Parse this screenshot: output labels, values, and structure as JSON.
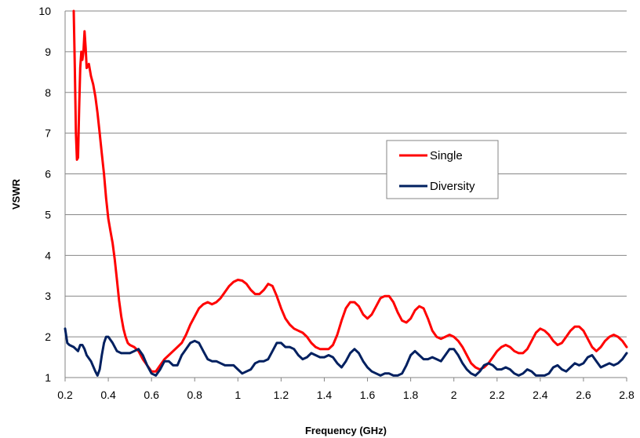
{
  "chart_data": {
    "type": "line",
    "xlabel": "Frequency (GHz)",
    "ylabel": "VSWR",
    "xlim": [
      0.2,
      2.8
    ],
    "ylim": [
      1,
      10
    ],
    "x_ticks": [
      "0.2",
      "0.4",
      "0.6",
      "0.8",
      "1",
      "1.2",
      "1.4",
      "1.6",
      "1.8",
      "2",
      "2.2",
      "2.4",
      "2.6",
      "2.8"
    ],
    "y_ticks": [
      "1",
      "2",
      "3",
      "4",
      "5",
      "6",
      "7",
      "8",
      "9",
      "10"
    ],
    "grid": "horizontal",
    "legend_position": "center-right",
    "series": [
      {
        "name": "Single",
        "color": "#ff0000",
        "points": [
          [
            0.24,
            10.0
          ],
          [
            0.245,
            8.6
          ],
          [
            0.25,
            7.0
          ],
          [
            0.255,
            6.35
          ],
          [
            0.26,
            6.4
          ],
          [
            0.265,
            7.6
          ],
          [
            0.27,
            8.6
          ],
          [
            0.275,
            9.0
          ],
          [
            0.28,
            8.8
          ],
          [
            0.285,
            9.0
          ],
          [
            0.29,
            9.5
          ],
          [
            0.295,
            9.1
          ],
          [
            0.3,
            8.6
          ],
          [
            0.31,
            8.7
          ],
          [
            0.32,
            8.4
          ],
          [
            0.33,
            8.2
          ],
          [
            0.34,
            7.9
          ],
          [
            0.35,
            7.5
          ],
          [
            0.36,
            7.0
          ],
          [
            0.37,
            6.5
          ],
          [
            0.38,
            6.0
          ],
          [
            0.39,
            5.4
          ],
          [
            0.4,
            4.9
          ],
          [
            0.41,
            4.6
          ],
          [
            0.42,
            4.3
          ],
          [
            0.43,
            3.9
          ],
          [
            0.44,
            3.4
          ],
          [
            0.45,
            2.9
          ],
          [
            0.46,
            2.5
          ],
          [
            0.47,
            2.2
          ],
          [
            0.48,
            2.0
          ],
          [
            0.49,
            1.85
          ],
          [
            0.5,
            1.8
          ],
          [
            0.52,
            1.75
          ],
          [
            0.54,
            1.65
          ],
          [
            0.56,
            1.45
          ],
          [
            0.58,
            1.3
          ],
          [
            0.6,
            1.15
          ],
          [
            0.62,
            1.15
          ],
          [
            0.64,
            1.3
          ],
          [
            0.66,
            1.45
          ],
          [
            0.68,
            1.55
          ],
          [
            0.7,
            1.65
          ],
          [
            0.72,
            1.75
          ],
          [
            0.74,
            1.85
          ],
          [
            0.76,
            2.05
          ],
          [
            0.78,
            2.3
          ],
          [
            0.8,
            2.5
          ],
          [
            0.82,
            2.7
          ],
          [
            0.84,
            2.8
          ],
          [
            0.86,
            2.85
          ],
          [
            0.88,
            2.8
          ],
          [
            0.9,
            2.85
          ],
          [
            0.92,
            2.95
          ],
          [
            0.94,
            3.1
          ],
          [
            0.96,
            3.25
          ],
          [
            0.98,
            3.35
          ],
          [
            1.0,
            3.4
          ],
          [
            1.02,
            3.38
          ],
          [
            1.04,
            3.3
          ],
          [
            1.06,
            3.15
          ],
          [
            1.08,
            3.05
          ],
          [
            1.1,
            3.05
          ],
          [
            1.12,
            3.15
          ],
          [
            1.14,
            3.3
          ],
          [
            1.16,
            3.25
          ],
          [
            1.18,
            3.0
          ],
          [
            1.2,
            2.7
          ],
          [
            1.22,
            2.45
          ],
          [
            1.24,
            2.3
          ],
          [
            1.26,
            2.2
          ],
          [
            1.28,
            2.15
          ],
          [
            1.3,
            2.1
          ],
          [
            1.32,
            2.0
          ],
          [
            1.34,
            1.85
          ],
          [
            1.36,
            1.75
          ],
          [
            1.38,
            1.7
          ],
          [
            1.4,
            1.7
          ],
          [
            1.42,
            1.7
          ],
          [
            1.44,
            1.8
          ],
          [
            1.46,
            2.05
          ],
          [
            1.48,
            2.4
          ],
          [
            1.5,
            2.7
          ],
          [
            1.52,
            2.85
          ],
          [
            1.54,
            2.85
          ],
          [
            1.56,
            2.75
          ],
          [
            1.58,
            2.55
          ],
          [
            1.6,
            2.45
          ],
          [
            1.62,
            2.55
          ],
          [
            1.64,
            2.75
          ],
          [
            1.66,
            2.95
          ],
          [
            1.68,
            3.0
          ],
          [
            1.7,
            3.0
          ],
          [
            1.72,
            2.85
          ],
          [
            1.74,
            2.6
          ],
          [
            1.76,
            2.4
          ],
          [
            1.78,
            2.35
          ],
          [
            1.8,
            2.45
          ],
          [
            1.82,
            2.65
          ],
          [
            1.84,
            2.75
          ],
          [
            1.86,
            2.7
          ],
          [
            1.88,
            2.45
          ],
          [
            1.9,
            2.15
          ],
          [
            1.92,
            2.0
          ],
          [
            1.94,
            1.95
          ],
          [
            1.96,
            2.0
          ],
          [
            1.98,
            2.05
          ],
          [
            2.0,
            2.0
          ],
          [
            2.02,
            1.9
          ],
          [
            2.04,
            1.75
          ],
          [
            2.06,
            1.55
          ],
          [
            2.08,
            1.35
          ],
          [
            2.1,
            1.25
          ],
          [
            2.12,
            1.2
          ],
          [
            2.14,
            1.25
          ],
          [
            2.16,
            1.35
          ],
          [
            2.18,
            1.5
          ],
          [
            2.2,
            1.65
          ],
          [
            2.22,
            1.75
          ],
          [
            2.24,
            1.8
          ],
          [
            2.26,
            1.75
          ],
          [
            2.28,
            1.65
          ],
          [
            2.3,
            1.6
          ],
          [
            2.32,
            1.6
          ],
          [
            2.34,
            1.7
          ],
          [
            2.36,
            1.9
          ],
          [
            2.38,
            2.1
          ],
          [
            2.4,
            2.2
          ],
          [
            2.42,
            2.15
          ],
          [
            2.44,
            2.05
          ],
          [
            2.46,
            1.9
          ],
          [
            2.48,
            1.8
          ],
          [
            2.5,
            1.85
          ],
          [
            2.52,
            2.0
          ],
          [
            2.54,
            2.15
          ],
          [
            2.56,
            2.25
          ],
          [
            2.58,
            2.25
          ],
          [
            2.6,
            2.15
          ],
          [
            2.62,
            1.95
          ],
          [
            2.64,
            1.75
          ],
          [
            2.66,
            1.65
          ],
          [
            2.68,
            1.75
          ],
          [
            2.7,
            1.9
          ],
          [
            2.72,
            2.0
          ],
          [
            2.74,
            2.05
          ],
          [
            2.76,
            2.0
          ],
          [
            2.78,
            1.9
          ],
          [
            2.8,
            1.75
          ]
        ]
      },
      {
        "name": "Diversity",
        "color": "#002060",
        "points": [
          [
            0.2,
            2.2
          ],
          [
            0.21,
            1.85
          ],
          [
            0.22,
            1.8
          ],
          [
            0.24,
            1.75
          ],
          [
            0.26,
            1.65
          ],
          [
            0.27,
            1.8
          ],
          [
            0.28,
            1.8
          ],
          [
            0.29,
            1.7
          ],
          [
            0.3,
            1.55
          ],
          [
            0.32,
            1.4
          ],
          [
            0.34,
            1.15
          ],
          [
            0.35,
            1.05
          ],
          [
            0.36,
            1.2
          ],
          [
            0.37,
            1.55
          ],
          [
            0.38,
            1.85
          ],
          [
            0.39,
            2.0
          ],
          [
            0.4,
            2.0
          ],
          [
            0.42,
            1.85
          ],
          [
            0.44,
            1.65
          ],
          [
            0.46,
            1.6
          ],
          [
            0.48,
            1.6
          ],
          [
            0.5,
            1.6
          ],
          [
            0.52,
            1.65
          ],
          [
            0.54,
            1.7
          ],
          [
            0.56,
            1.55
          ],
          [
            0.58,
            1.3
          ],
          [
            0.6,
            1.1
          ],
          [
            0.62,
            1.05
          ],
          [
            0.64,
            1.2
          ],
          [
            0.66,
            1.4
          ],
          [
            0.68,
            1.4
          ],
          [
            0.7,
            1.3
          ],
          [
            0.72,
            1.3
          ],
          [
            0.74,
            1.55
          ],
          [
            0.76,
            1.7
          ],
          [
            0.78,
            1.85
          ],
          [
            0.8,
            1.9
          ],
          [
            0.82,
            1.85
          ],
          [
            0.84,
            1.65
          ],
          [
            0.86,
            1.45
          ],
          [
            0.88,
            1.4
          ],
          [
            0.9,
            1.4
          ],
          [
            0.92,
            1.35
          ],
          [
            0.94,
            1.3
          ],
          [
            0.96,
            1.3
          ],
          [
            0.98,
            1.3
          ],
          [
            1.0,
            1.2
          ],
          [
            1.02,
            1.1
          ],
          [
            1.04,
            1.15
          ],
          [
            1.06,
            1.2
          ],
          [
            1.08,
            1.35
          ],
          [
            1.1,
            1.4
          ],
          [
            1.12,
            1.4
          ],
          [
            1.14,
            1.45
          ],
          [
            1.16,
            1.65
          ],
          [
            1.18,
            1.85
          ],
          [
            1.2,
            1.85
          ],
          [
            1.22,
            1.75
          ],
          [
            1.24,
            1.75
          ],
          [
            1.26,
            1.7
          ],
          [
            1.28,
            1.55
          ],
          [
            1.3,
            1.45
          ],
          [
            1.32,
            1.5
          ],
          [
            1.34,
            1.6
          ],
          [
            1.36,
            1.55
          ],
          [
            1.38,
            1.5
          ],
          [
            1.4,
            1.5
          ],
          [
            1.42,
            1.55
          ],
          [
            1.44,
            1.5
          ],
          [
            1.46,
            1.35
          ],
          [
            1.48,
            1.25
          ],
          [
            1.5,
            1.4
          ],
          [
            1.52,
            1.6
          ],
          [
            1.54,
            1.7
          ],
          [
            1.56,
            1.6
          ],
          [
            1.58,
            1.4
          ],
          [
            1.6,
            1.25
          ],
          [
            1.62,
            1.15
          ],
          [
            1.64,
            1.1
          ],
          [
            1.66,
            1.05
          ],
          [
            1.68,
            1.1
          ],
          [
            1.7,
            1.1
          ],
          [
            1.72,
            1.05
          ],
          [
            1.74,
            1.05
          ],
          [
            1.76,
            1.1
          ],
          [
            1.78,
            1.3
          ],
          [
            1.8,
            1.55
          ],
          [
            1.82,
            1.65
          ],
          [
            1.84,
            1.55
          ],
          [
            1.86,
            1.45
          ],
          [
            1.88,
            1.45
          ],
          [
            1.9,
            1.5
          ],
          [
            1.92,
            1.45
          ],
          [
            1.94,
            1.4
          ],
          [
            1.96,
            1.55
          ],
          [
            1.98,
            1.7
          ],
          [
            2.0,
            1.7
          ],
          [
            2.02,
            1.55
          ],
          [
            2.04,
            1.35
          ],
          [
            2.06,
            1.2
          ],
          [
            2.08,
            1.1
          ],
          [
            2.1,
            1.05
          ],
          [
            2.12,
            1.15
          ],
          [
            2.14,
            1.3
          ],
          [
            2.16,
            1.35
          ],
          [
            2.18,
            1.3
          ],
          [
            2.2,
            1.2
          ],
          [
            2.22,
            1.2
          ],
          [
            2.24,
            1.25
          ],
          [
            2.26,
            1.2
          ],
          [
            2.28,
            1.1
          ],
          [
            2.3,
            1.05
          ],
          [
            2.32,
            1.1
          ],
          [
            2.34,
            1.2
          ],
          [
            2.36,
            1.15
          ],
          [
            2.38,
            1.05
          ],
          [
            2.4,
            1.05
          ],
          [
            2.42,
            1.05
          ],
          [
            2.44,
            1.1
          ],
          [
            2.46,
            1.25
          ],
          [
            2.48,
            1.3
          ],
          [
            2.5,
            1.2
          ],
          [
            2.52,
            1.15
          ],
          [
            2.54,
            1.25
          ],
          [
            2.56,
            1.35
          ],
          [
            2.58,
            1.3
          ],
          [
            2.6,
            1.35
          ],
          [
            2.62,
            1.5
          ],
          [
            2.64,
            1.55
          ],
          [
            2.66,
            1.4
          ],
          [
            2.68,
            1.25
          ],
          [
            2.7,
            1.3
          ],
          [
            2.72,
            1.35
          ],
          [
            2.74,
            1.3
          ],
          [
            2.76,
            1.35
          ],
          [
            2.78,
            1.45
          ],
          [
            2.8,
            1.6
          ]
        ]
      }
    ]
  }
}
